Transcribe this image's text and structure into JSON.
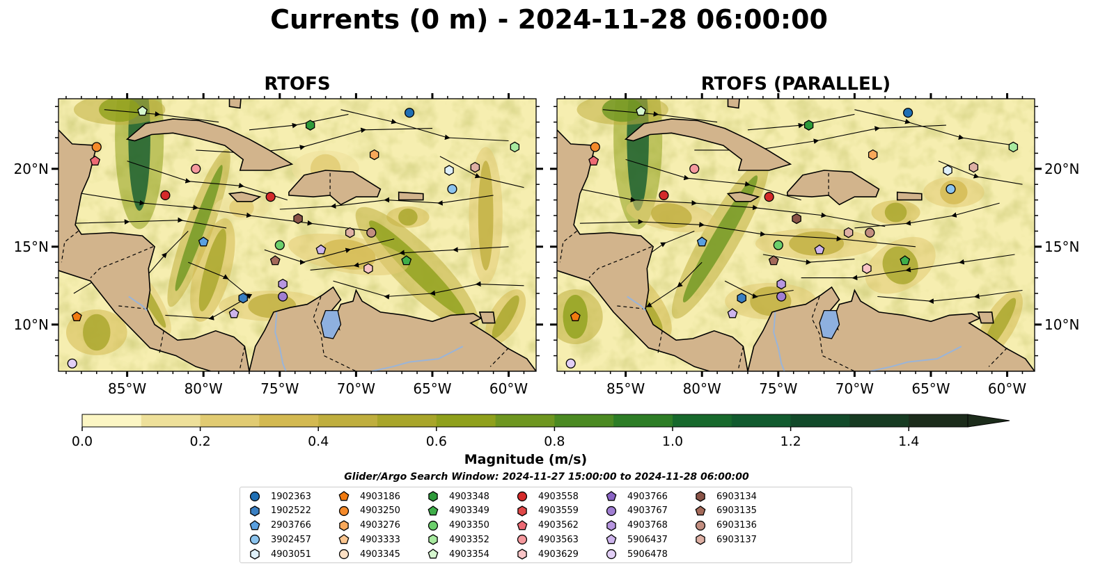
{
  "title": "Currents (0 m) - 2024-11-28 06:00:00",
  "panels": [
    {
      "title": "RTOFS"
    },
    {
      "title": "RTOFS (PARALLEL)"
    }
  ],
  "map": {
    "lon_range": [
      -89.5,
      -58.2
    ],
    "lat_range": [
      7.0,
      24.5
    ],
    "lon_ticks": [
      "85°W",
      "80°W",
      "75°W",
      "70°W",
      "65°W",
      "60°W"
    ],
    "lat_ticks": [
      "20°N",
      "15°N",
      "10°N"
    ],
    "colors": {
      "land": "#d2b48c",
      "lake": "#8eb0df",
      "river": "#9ab4d8",
      "sea_low": "#f6eeb0"
    }
  },
  "colorbar": {
    "label": "Magnitude (m/s)",
    "ticks": [
      "0.0",
      "0.2",
      "0.4",
      "0.6",
      "0.8",
      "1.0",
      "1.2",
      "1.4"
    ],
    "range": [
      0.0,
      1.5
    ],
    "extend": "max",
    "colors": [
      "#fcf6c4",
      "#eee09a",
      "#e1cb72",
      "#d3b951",
      "#bfae3e",
      "#a8a52a",
      "#8fa01c",
      "#6e9620",
      "#4b8a22",
      "#2d7d26",
      "#17692c",
      "#115a2e",
      "#124a2a",
      "#173b22",
      "#1c2c1b"
    ]
  },
  "search_window": "Glider/Argo Search Window: 2024-11-27 15:00:00 to 2024-11-28 06:00:00",
  "legend": [
    {
      "id": "1902363",
      "shape": "circle",
      "color": "#1f6fb4"
    },
    {
      "id": "1902522",
      "shape": "hexagon",
      "color": "#3a7fc2"
    },
    {
      "id": "2903766",
      "shape": "pentagon",
      "color": "#5aa0e0"
    },
    {
      "id": "3902457",
      "shape": "circle",
      "color": "#8cc4ee"
    },
    {
      "id": "4903051",
      "shape": "hexagon",
      "color": "#dff0fa"
    },
    {
      "id": "4903186",
      "shape": "pentagon",
      "color": "#f07a10"
    },
    {
      "id": "4903250",
      "shape": "circle",
      "color": "#f58a2a"
    },
    {
      "id": "4903276",
      "shape": "hexagon",
      "color": "#f8a85a"
    },
    {
      "id": "4903333",
      "shape": "pentagon",
      "color": "#fbc690"
    },
    {
      "id": "4903345",
      "shape": "circle",
      "color": "#fde0c4"
    },
    {
      "id": "4903348",
      "shape": "hexagon",
      "color": "#2e9a3a"
    },
    {
      "id": "4903349",
      "shape": "pentagon",
      "color": "#3fae4a"
    },
    {
      "id": "4903350",
      "shape": "circle",
      "color": "#6ccf6c"
    },
    {
      "id": "4903352",
      "shape": "hexagon",
      "color": "#a8eaa0"
    },
    {
      "id": "4903354",
      "shape": "pentagon",
      "color": "#d6f7cf"
    },
    {
      "id": "4903558",
      "shape": "circle",
      "color": "#d42a2a"
    },
    {
      "id": "4903559",
      "shape": "hexagon",
      "color": "#e04848"
    },
    {
      "id": "4903562",
      "shape": "pentagon",
      "color": "#ec6a74"
    },
    {
      "id": "4903563",
      "shape": "circle",
      "color": "#f5999e"
    },
    {
      "id": "4903629",
      "shape": "hexagon",
      "color": "#f9c4c6"
    },
    {
      "id": "4903766",
      "shape": "pentagon",
      "color": "#8a64c4"
    },
    {
      "id": "4903767",
      "shape": "circle",
      "color": "#a07ed2"
    },
    {
      "id": "4903768",
      "shape": "hexagon",
      "color": "#b796e0"
    },
    {
      "id": "5906437",
      "shape": "pentagon",
      "color": "#cdb4ec"
    },
    {
      "id": "5906478",
      "shape": "circle",
      "color": "#e2cff6"
    },
    {
      "id": "6903134",
      "shape": "hexagon",
      "color": "#8a5448"
    },
    {
      "id": "6903135",
      "shape": "pentagon",
      "color": "#a46a5a"
    },
    {
      "id": "6903136",
      "shape": "circle",
      "color": "#c28e80"
    },
    {
      "id": "6903137",
      "shape": "hexagon",
      "color": "#deb0a4"
    }
  ],
  "floats": [
    {
      "id": "1902363",
      "lon": -66.5,
      "lat": 23.6
    },
    {
      "id": "4903352",
      "lon": -59.6,
      "lat": 21.4
    },
    {
      "id": "4903348",
      "lon": -73.0,
      "lat": 22.8
    },
    {
      "id": "4903354",
      "lon": -84.0,
      "lat": 23.7
    },
    {
      "id": "4903250",
      "lon": -87.0,
      "lat": 21.4
    },
    {
      "id": "4903562",
      "lon": -87.1,
      "lat": 20.5
    },
    {
      "id": "4903563",
      "lon": -80.5,
      "lat": 20.0
    },
    {
      "id": "4903558",
      "lon": -82.5,
      "lat": 18.3
    },
    {
      "id": "4903558",
      "lon": -75.6,
      "lat": 18.2
    },
    {
      "id": "4903276",
      "lon": -68.8,
      "lat": 20.9
    },
    {
      "id": "4903051",
      "lon": -63.9,
      "lat": 19.9
    },
    {
      "id": "6903137",
      "lon": -62.2,
      "lat": 20.1
    },
    {
      "id": "3902457",
      "lon": -63.7,
      "lat": 18.7
    },
    {
      "id": "2903766",
      "lon": -80.0,
      "lat": 15.3
    },
    {
      "id": "6903134",
      "lon": -73.8,
      "lat": 16.8
    },
    {
      "id": "4903350",
      "lon": -75.0,
      "lat": 15.1
    },
    {
      "id": "6903135",
      "lon": -75.3,
      "lat": 14.1
    },
    {
      "id": "5906437",
      "lon": -72.3,
      "lat": 14.8
    },
    {
      "id": "6903137",
      "lon": -70.4,
      "lat": 15.9
    },
    {
      "id": "6903136",
      "lon": -69.0,
      "lat": 15.9
    },
    {
      "id": "4903629",
      "lon": -69.2,
      "lat": 13.6
    },
    {
      "id": "4903349",
      "lon": -66.7,
      "lat": 14.1
    },
    {
      "id": "4903768",
      "lon": -74.8,
      "lat": 12.6
    },
    {
      "id": "4903767",
      "lon": -74.8,
      "lat": 11.8
    },
    {
      "id": "1902522",
      "lon": -77.4,
      "lat": 11.7
    },
    {
      "id": "5906437",
      "lon": -78.0,
      "lat": 10.7
    },
    {
      "id": "4903186",
      "lon": -88.3,
      "lat": 10.5
    },
    {
      "id": "5906478",
      "lon": -88.6,
      "lat": 7.5
    }
  ]
}
